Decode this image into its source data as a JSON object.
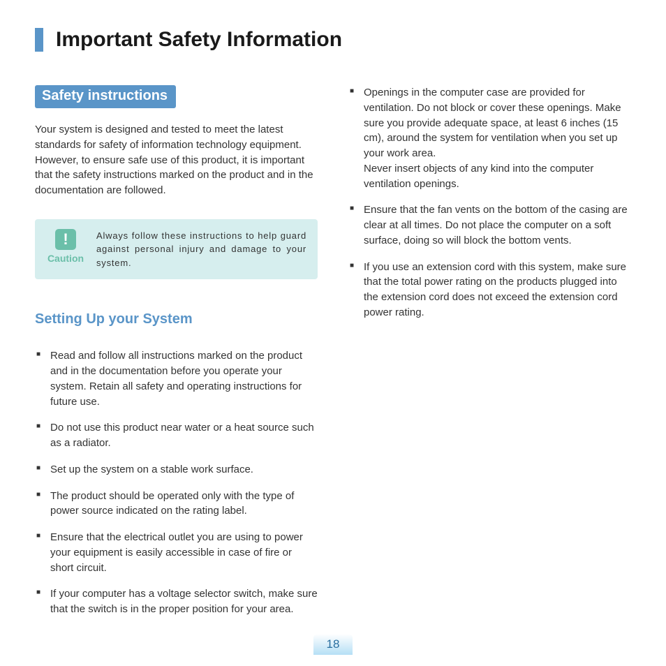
{
  "colors": {
    "accent_blue": "#5a95c8",
    "caution_bg": "#d6eeee",
    "caution_green": "#6bbfa9",
    "text": "#333333",
    "pagenum_gradient_top": "#ffffff",
    "pagenum_gradient_bottom": "#b5dff5",
    "pagenum_text": "#2a6fa0"
  },
  "page_title": "Important Safety Information",
  "section_header": "Safety instructions",
  "intro": "Your system is designed and tested to meet the latest standards for safety of information technology equipment. However, to ensure safe use of this product, it is important that the safety instructions marked on the product and in the documentation are followed.",
  "caution": {
    "icon_glyph": "!",
    "label": "Caution",
    "text": "Always follow these instructions to help guard against personal injury and damage to your system."
  },
  "sub_header": "Setting Up your System",
  "left_bullets": [
    "Read and follow all instructions marked on the product and in the documentation before you operate your system. Retain all safety and operating instructions for future use.",
    "Do not use this product near water or a heat source such as a radiator.",
    "Set up the system on a stable work surface.",
    "The product should be operated only with the type of power source indicated on the rating label.",
    "Ensure that the electrical outlet you are using to power your equipment is easily accessible in case of fire or short circuit.",
    "If your computer has a voltage selector switch, make sure that the switch is in the proper position for your area."
  ],
  "right_bullets": [
    "Openings in the computer case are provided for ventilation. Do not block or cover these openings. Make sure you provide adequate space, at least 6 inches (15 cm), around the system for ventilation when you set up your work area.\nNever insert objects of any kind into the computer ventilation openings.",
    "Ensure that the fan vents on the bottom of the casing are clear at all times. Do not place the computer on a soft surface, doing so will block the bottom vents.",
    "If you use an extension cord with this system, make sure that the total power rating on the products plugged into the extension cord does not exceed the extension cord power rating."
  ],
  "page_number": "18"
}
